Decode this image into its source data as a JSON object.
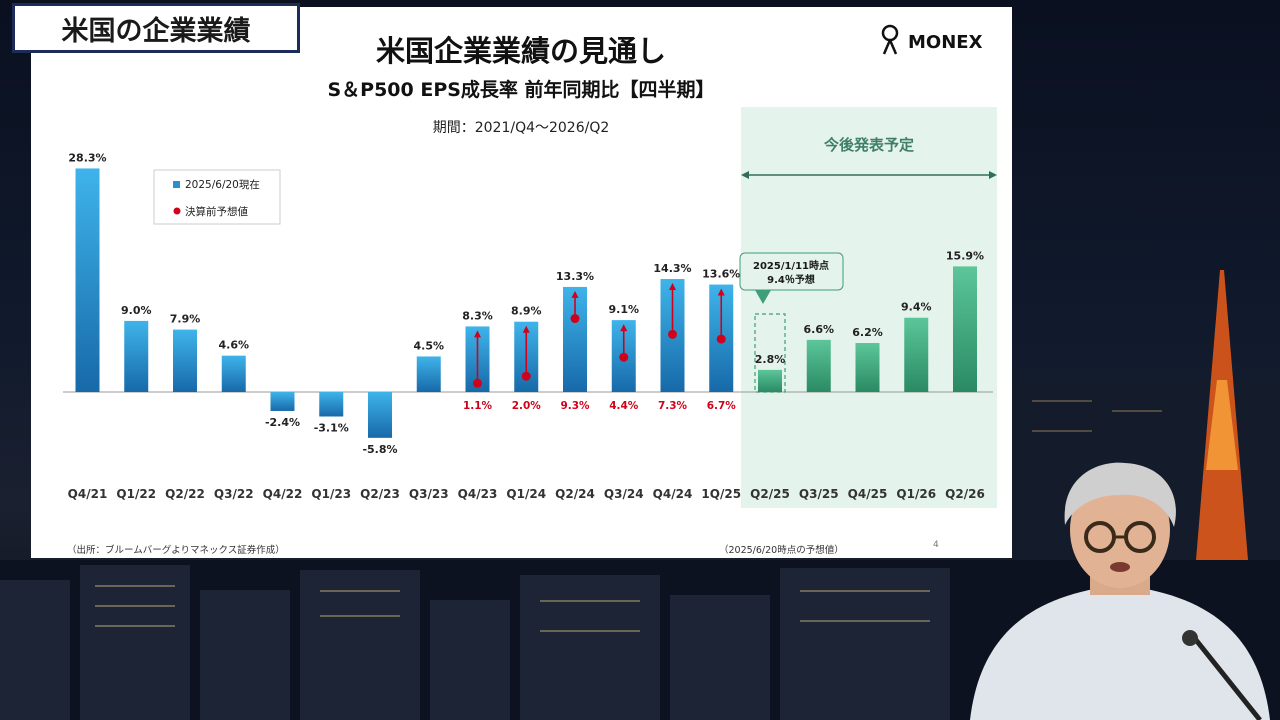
{
  "corner_title": "米国の企業業績",
  "slide": {
    "title": "米国企業業績の見通し",
    "subtitle": "S＆P500 EPS成長率 前年同期比【四半期】",
    "period": "期間：2021/Q4〜2026/Q2",
    "brand": "MONEX",
    "source": "（出所：ブルームバーグよりマネックス証券作成）",
    "forecast_note": "（2025/6/20時点の予想値）",
    "page_number": "4",
    "future_region_label": "今後発表予定",
    "callout_line1": "2025/1/11時点",
    "callout_line2": "9.4％予想"
  },
  "chart_data": {
    "type": "bar",
    "title": "米国企業業績の見通し",
    "subtitle": "S＆P500 EPS成長率 前年同期比【四半期】",
    "categories": [
      "Q4/21",
      "Q1/22",
      "Q2/22",
      "Q3/22",
      "Q4/22",
      "Q1/23",
      "Q2/23",
      "Q3/23",
      "Q4/23",
      "Q1/24",
      "Q2/24",
      "Q3/24",
      "Q4/24",
      "1Q/25",
      "Q2/25",
      "Q3/25",
      "Q4/25",
      "Q1/26",
      "Q2/26"
    ],
    "series": [
      {
        "name": "2025/6/20現在",
        "values": [
          28.3,
          9.0,
          7.9,
          4.6,
          -2.4,
          -3.1,
          -5.8,
          4.5,
          8.3,
          8.9,
          13.3,
          9.1,
          14.3,
          13.6,
          2.8,
          6.6,
          6.2,
          9.4,
          15.9
        ],
        "labels": [
          "28.3%",
          "9.0%",
          "7.9%",
          "4.6%",
          "-2.4%",
          "-3.1%",
          "-5.8%",
          "4.5%",
          "8.3%",
          "8.9%",
          "13.3%",
          "9.1%",
          "14.3%",
          "13.6%",
          "2.8%",
          "6.6%",
          "6.2%",
          "9.4%",
          "15.9%"
        ]
      },
      {
        "name": "決算前予想値",
        "values": [
          null,
          null,
          null,
          null,
          null,
          null,
          null,
          null,
          1.1,
          2.0,
          9.3,
          4.4,
          7.3,
          6.7,
          null,
          null,
          null,
          null,
          null
        ],
        "labels": [
          "",
          "",
          "",
          "",
          "",
          "",
          "",
          "",
          "1.1%",
          "2.0%",
          "9.3%",
          "4.4%",
          "7.3%",
          "6.7%",
          "",
          "",
          "",
          "",
          ""
        ]
      }
    ],
    "forecast_start_index": 14,
    "ylim": [
      -7,
      30
    ],
    "colors": {
      "actual": "#2a8fd0",
      "forecast": "#3e9e78",
      "estimate": "#d0021b",
      "region": "#e4f3ec"
    }
  }
}
